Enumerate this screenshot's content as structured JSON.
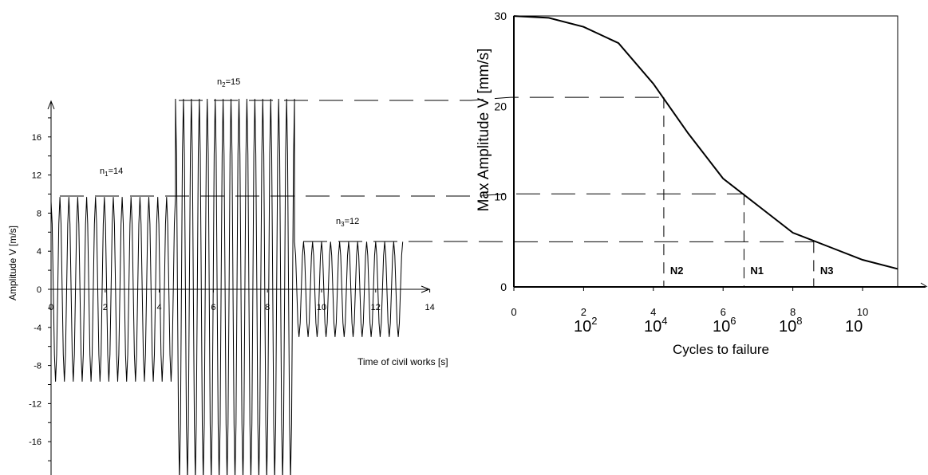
{
  "chart_data": [
    {
      "type": "line",
      "title": "",
      "xlabel": "Time of civil  works [s]",
      "ylabel": "Amplitude V [m/s]",
      "xlim": [
        0,
        14
      ],
      "ylim": [
        -20,
        20
      ],
      "x_ticks": [
        "0",
        "2",
        "4",
        "6",
        "8",
        "10",
        "12",
        "14"
      ],
      "y_ticks": [
        "16",
        "12",
        "8",
        "4",
        "0",
        "-4",
        "-8",
        "-12",
        "-16"
      ],
      "segments": [
        {
          "label_base": "n",
          "label_sub": "1",
          "label_rest": "=14",
          "cycles": 14,
          "t_start": 0.0,
          "t_end": 4.6,
          "amplitude": 9.7
        },
        {
          "label_base": "n",
          "label_sub": "2",
          "label_rest": "=15",
          "cycles": 15,
          "t_start": 4.6,
          "t_end": 9.0,
          "amplitude": 20.0
        },
        {
          "label_base": "n",
          "label_sub": "3",
          "label_rest": "=12",
          "cycles": 12,
          "t_start": 9.0,
          "t_end": 13.0,
          "amplitude": 5.0
        }
      ]
    },
    {
      "type": "line",
      "title": "",
      "xlabel": "Cycles to failure",
      "ylabel": "Max Amplitude  V [mm/s]",
      "xlim": [
        0,
        11
      ],
      "ylim": [
        0,
        30
      ],
      "x_ticks": [
        "0",
        "2",
        "4",
        "6",
        "8",
        "10"
      ],
      "x_bottom_labels": [
        {
          "base": "10",
          "exp": "2"
        },
        {
          "base": "10",
          "exp": "4"
        },
        {
          "base": "10",
          "exp": "6"
        },
        {
          "base": "10",
          "exp": "8"
        },
        {
          "base": "10",
          "exp": ""
        }
      ],
      "y_ticks": [
        "30",
        "20",
        "10",
        "0"
      ],
      "x": [
        0,
        1,
        2,
        3,
        4,
        5,
        6,
        7,
        8,
        9,
        10,
        11
      ],
      "y": [
        30,
        29.8,
        28.8,
        27,
        22.5,
        17,
        12,
        9,
        6,
        4.5,
        3,
        2
      ],
      "markers": [
        {
          "label": "N2",
          "amplitude": 21,
          "x": 4.3
        },
        {
          "label": "N1",
          "amplitude": 10.3,
          "x": 6.6
        },
        {
          "label": "N3",
          "amplitude": 5,
          "x": 8.6
        }
      ]
    }
  ]
}
